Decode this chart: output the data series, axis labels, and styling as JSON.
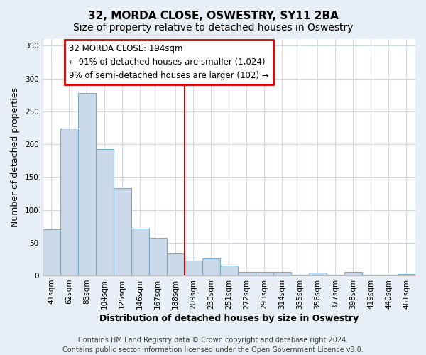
{
  "title": "32, MORDA CLOSE, OSWESTRY, SY11 2BA",
  "subtitle": "Size of property relative to detached houses in Oswestry",
  "xlabel": "Distribution of detached houses by size in Oswestry",
  "ylabel": "Number of detached properties",
  "bar_labels": [
    "41sqm",
    "62sqm",
    "83sqm",
    "104sqm",
    "125sqm",
    "146sqm",
    "167sqm",
    "188sqm",
    "209sqm",
    "230sqm",
    "251sqm",
    "272sqm",
    "293sqm",
    "314sqm",
    "335sqm",
    "356sqm",
    "377sqm",
    "398sqm",
    "419sqm",
    "440sqm",
    "461sqm"
  ],
  "bar_values": [
    70,
    224,
    278,
    193,
    133,
    71,
    57,
    34,
    23,
    26,
    15,
    5,
    6,
    6,
    1,
    4,
    1,
    6,
    1,
    1,
    2
  ],
  "bar_color": "#c9d9ea",
  "bar_edgecolor": "#7aadcc",
  "reference_line_label": "32 MORDA CLOSE: 194sqm",
  "annotation_line1": "← 91% of detached houses are smaller (1,024)",
  "annotation_line2": "9% of semi-detached houses are larger (102) →",
  "annotation_box_facecolor": "#ffffff",
  "annotation_box_edgecolor": "#cc0000",
  "vline_color": "#cc0000",
  "ylim": [
    0,
    360
  ],
  "yticks": [
    0,
    50,
    100,
    150,
    200,
    250,
    300,
    350
  ],
  "footer1": "Contains HM Land Registry data © Crown copyright and database right 2024.",
  "footer2": "Contains public sector information licensed under the Open Government Licence v3.0.",
  "fig_bg_color": "#e8eef5",
  "plot_bg_color": "#ffffff",
  "grid_color": "#d0d8e8",
  "title_fontsize": 11,
  "subtitle_fontsize": 10,
  "axis_label_fontsize": 9,
  "tick_fontsize": 7.5,
  "footer_fontsize": 7,
  "annotation_fontsize": 8.5
}
